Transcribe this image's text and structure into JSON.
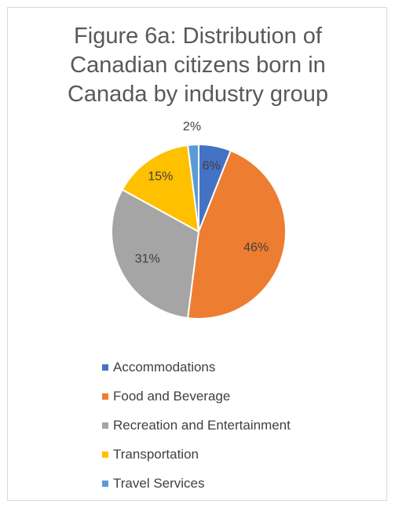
{
  "chart_data": {
    "type": "pie",
    "title": "Figure 6a: Distribution of\nCanadian citizens born in\nCanada by industry group",
    "categories": [
      "Accommodations",
      "Food and Beverage",
      "Recreation and Entertainment",
      "Transportation",
      "Travel Services"
    ],
    "values": [
      6,
      46,
      31,
      15,
      2
    ],
    "data_labels": [
      "6%",
      "46%",
      "31%",
      "15%",
      "2%"
    ],
    "colors": [
      "#4472C4",
      "#ED7D31",
      "#A5A5A5",
      "#FFC000",
      "#5B9BD5"
    ],
    "start_angle_deg": 0,
    "direction": "clockwise",
    "legend_position": "bottom",
    "grid": false
  }
}
